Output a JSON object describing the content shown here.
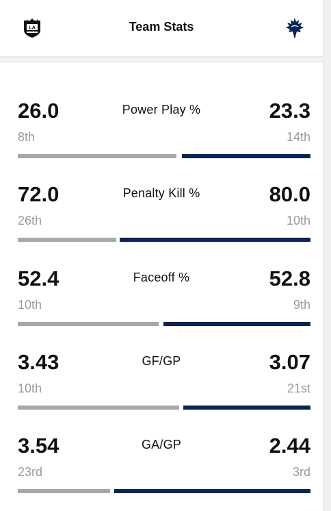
{
  "header": {
    "title": "Team Stats",
    "away_team_logo": "la-kings-logo-icon",
    "home_team_logo": "toronto-maple-leafs-logo-icon"
  },
  "colors": {
    "away_bar": "#a6a9ab",
    "home_bar": "#0b2455"
  },
  "stats": [
    {
      "label": "Power Play %",
      "away_value": "26.0",
      "away_rank": "8th",
      "home_value": "23.3",
      "home_rank": "14th"
    },
    {
      "label": "Penalty Kill %",
      "away_value": "72.0",
      "away_rank": "26th",
      "home_value": "80.0",
      "home_rank": "10th"
    },
    {
      "label": "Faceoff %",
      "away_value": "52.4",
      "away_rank": "10th",
      "home_value": "52.8",
      "home_rank": "9th"
    },
    {
      "label": "GF/GP",
      "away_value": "3.43",
      "away_rank": "10th",
      "home_value": "3.07",
      "home_rank": "21st"
    },
    {
      "label": "GA/GP",
      "away_value": "3.54",
      "away_rank": "23rd",
      "home_value": "2.44",
      "home_rank": "3rd"
    }
  ]
}
